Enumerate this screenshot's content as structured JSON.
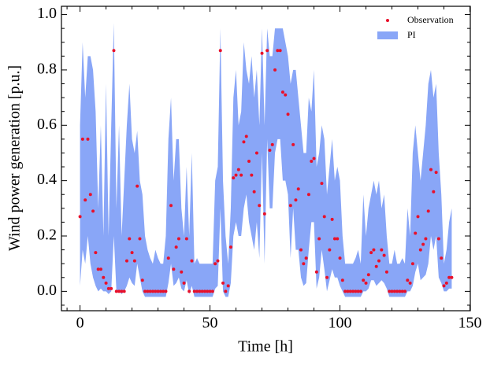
{
  "chart_data": {
    "type": "band_scatter",
    "xlabel": "Time [h]",
    "ylabel": "Wind power generation [p.u.]",
    "xlim": [
      -7.15,
      150.15
    ],
    "ylim": [
      -0.07,
      1.03
    ],
    "xticks": [
      0,
      50,
      100,
      150
    ],
    "yticks": [
      {
        "value": 0,
        "label": "0.0"
      },
      {
        "value": 0.2,
        "label": "0.2"
      },
      {
        "value": 0.4,
        "label": "0.4"
      },
      {
        "value": 0.6,
        "label": "0.6"
      },
      {
        "value": 0.8,
        "label": "0.8"
      },
      {
        "value": 1.0,
        "label": "1.0"
      }
    ],
    "xminorticks": [
      -5,
      10,
      20,
      30,
      40,
      60,
      70,
      80,
      90,
      110,
      120,
      130,
      140
    ],
    "yminorticks": [
      -0.05,
      0.05,
      0.1,
      0.15,
      0.25,
      0.3,
      0.35,
      0.45,
      0.5,
      0.55,
      0.65,
      0.7,
      0.75,
      0.85,
      0.9,
      0.95
    ],
    "legend": "upper right",
    "x": [
      0,
      1,
      2,
      3,
      4,
      5,
      6,
      7,
      8,
      9,
      10,
      11,
      12,
      13,
      14,
      15,
      16,
      17,
      18,
      19,
      20,
      21,
      22,
      23,
      24,
      25,
      26,
      27,
      28,
      29,
      30,
      31,
      32,
      33,
      34,
      35,
      36,
      37,
      38,
      39,
      40,
      41,
      42,
      43,
      44,
      45,
      46,
      47,
      48,
      49,
      50,
      51,
      52,
      53,
      54,
      55,
      56,
      57,
      58,
      59,
      60,
      61,
      62,
      63,
      64,
      65,
      66,
      67,
      68,
      69,
      70,
      71,
      72,
      73,
      74,
      75,
      76,
      77,
      78,
      79,
      80,
      81,
      82,
      83,
      84,
      85,
      86,
      87,
      88,
      89,
      90,
      91,
      92,
      93,
      94,
      95,
      96,
      97,
      98,
      99,
      100,
      101,
      102,
      103,
      104,
      105,
      106,
      107,
      108,
      109,
      110,
      111,
      112,
      113,
      114,
      115,
      116,
      117,
      118,
      119,
      120,
      121,
      122,
      123,
      124,
      125,
      126,
      127,
      128,
      129,
      130,
      131,
      132,
      133,
      134,
      135,
      136,
      137,
      138,
      139,
      140,
      141,
      142,
      143
    ],
    "series": [
      {
        "name": "PI",
        "kind": "band",
        "color": "#89a6f7",
        "upper": [
          0.6,
          0.9,
          0.7,
          0.85,
          0.85,
          0.8,
          0.65,
          0.3,
          0.6,
          0.2,
          0.75,
          0.2,
          0.6,
          0.97,
          0.3,
          0.6,
          0.2,
          0.4,
          0.6,
          0.75,
          0.55,
          0.5,
          0.58,
          0.4,
          0.35,
          0.2,
          0.15,
          0.12,
          0.1,
          0.15,
          0.12,
          0.1,
          0.1,
          0.2,
          0.55,
          0.7,
          0.4,
          0.55,
          0.55,
          0.3,
          0.2,
          0.45,
          0.2,
          0.5,
          0.1,
          0.12,
          0.1,
          0.1,
          0.1,
          0.1,
          0.1,
          0.1,
          0.4,
          0.45,
          0.95,
          0.4,
          0.2,
          0.1,
          0.3,
          0.7,
          0.8,
          0.6,
          0.65,
          0.9,
          0.8,
          0.75,
          0.85,
          0.7,
          0.8,
          0.6,
          0.95,
          0.6,
          0.95,
          0.85,
          0.85,
          0.95,
          0.95,
          0.95,
          0.95,
          0.9,
          0.85,
          0.75,
          0.8,
          0.8,
          0.7,
          0.6,
          0.5,
          0.5,
          0.7,
          0.65,
          0.8,
          0.45,
          0.5,
          0.6,
          0.55,
          0.35,
          0.45,
          0.55,
          0.4,
          0.45,
          0.4,
          0.2,
          0.1,
          0.1,
          0.1,
          0.1,
          0.12,
          0.15,
          0.1,
          0.35,
          0.2,
          0.3,
          0.35,
          0.4,
          0.35,
          0.4,
          0.3,
          0.35,
          0.2,
          0.1,
          0.1,
          0.15,
          0.1,
          0.1,
          0.12,
          0.1,
          0.3,
          0.2,
          0.5,
          0.6,
          0.5,
          0.4,
          0.5,
          0.6,
          0.75,
          0.8,
          0.7,
          0.75,
          0.5,
          0.35,
          0.1,
          0.15,
          0.25,
          0.3
        ],
        "lower": [
          0.02,
          0.15,
          0.1,
          0.2,
          0.1,
          0.05,
          0.02,
          0,
          0.01,
          0,
          0,
          -0.01,
          0,
          0.2,
          0,
          0,
          -0.01,
          0,
          0.02,
          0.05,
          0.03,
          0.02,
          0.1,
          0.05,
          0,
          -0.02,
          -0.02,
          -0.02,
          -0.02,
          -0.02,
          -0.02,
          -0.02,
          -0.02,
          -0.02,
          0.03,
          0.1,
          0.02,
          0.03,
          0.05,
          0.01,
          0,
          0.04,
          -0.01,
          0.02,
          -0.02,
          -0.02,
          -0.02,
          -0.02,
          -0.02,
          -0.02,
          -0.02,
          -0.02,
          0.01,
          0.02,
          0.3,
          0,
          -0.02,
          -0.02,
          0.03,
          0.2,
          0.25,
          0.2,
          0.2,
          0.3,
          0.35,
          0.25,
          0.2,
          0.15,
          0.25,
          0.12,
          0.5,
          0.1,
          0.55,
          0.3,
          0.3,
          0.5,
          0.55,
          0.55,
          0.4,
          0.4,
          0.35,
          0.12,
          0.3,
          0.15,
          0.15,
          0.05,
          0.02,
          0.03,
          0.15,
          0.25,
          0.25,
          0.01,
          0.05,
          0.15,
          0.08,
          0,
          0.04,
          0.08,
          0.05,
          0.05,
          0.02,
          0,
          -0.02,
          -0.02,
          -0.02,
          -0.02,
          -0.02,
          -0.02,
          -0.02,
          0,
          0,
          0.01,
          0.04,
          0.04,
          0.02,
          0.03,
          0.04,
          0.03,
          0.01,
          -0.02,
          -0.02,
          -0.02,
          -0.02,
          -0.02,
          -0.02,
          -0.02,
          0,
          0,
          0.02,
          0.07,
          0.1,
          0.04,
          0.05,
          0.06,
          0.1,
          0.2,
          0.15,
          0.2,
          0.05,
          0.03,
          0,
          0,
          0.01,
          0.01
        ]
      },
      {
        "name": "Observation",
        "kind": "points",
        "color": "#e8102a",
        "values": [
          0.27,
          0.55,
          0.33,
          0.55,
          0.35,
          0.29,
          0.14,
          0.08,
          0.08,
          0.05,
          0.03,
          0.01,
          0.01,
          0.87,
          0,
          0,
          0,
          0,
          0.11,
          0.19,
          0.14,
          0.11,
          0.38,
          0.19,
          0.04,
          0,
          0,
          0,
          0,
          0,
          0,
          0,
          0,
          0,
          0.12,
          0.31,
          0.08,
          0.16,
          0.19,
          0.07,
          0.03,
          0.19,
          0,
          0.11,
          0,
          0,
          0,
          0,
          0,
          0,
          0,
          0,
          0.1,
          0.11,
          0.87,
          0.03,
          0,
          0.02,
          0.16,
          0.41,
          0.42,
          0.44,
          0.42,
          0.54,
          0.56,
          0.47,
          0.42,
          0.36,
          0.5,
          0.31,
          0.86,
          0.28,
          0.87,
          0.51,
          0.53,
          0.8,
          0.87,
          0.87,
          0.72,
          0.71,
          0.64,
          0.31,
          0.53,
          0.33,
          0.37,
          0.15,
          0.1,
          0.12,
          0.35,
          0.47,
          0.48,
          0.07,
          0.19,
          0.39,
          0.27,
          0.05,
          0.15,
          0.26,
          0.19,
          0.19,
          0.12,
          0.04,
          0,
          0,
          0,
          0,
          0,
          0,
          0,
          0.04,
          0.03,
          0.06,
          0.14,
          0.15,
          0.09,
          0.11,
          0.15,
          0.13,
          0.07,
          0,
          0,
          0,
          0,
          0,
          0,
          0,
          0.04,
          0.03,
          0.1,
          0.21,
          0.27,
          0.15,
          0.17,
          0.19,
          0.29,
          0.44,
          0.36,
          0.43,
          0.19,
          0.12,
          0.02,
          0.03,
          0.05,
          0.05
        ]
      }
    ]
  }
}
